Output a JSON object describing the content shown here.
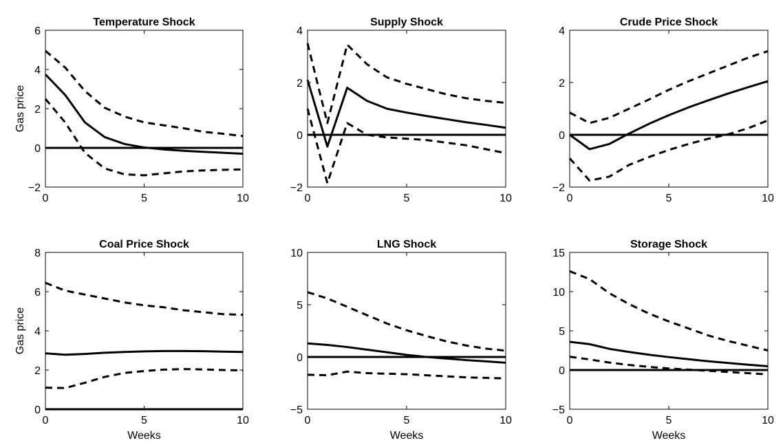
{
  "chart_data": [
    {
      "type": "line",
      "title": "Temperature Shock",
      "xlabel": "",
      "ylabel": "Gas price",
      "xlim": [
        0,
        10
      ],
      "ylim": [
        -2,
        6
      ],
      "xticks": [
        0,
        5,
        10
      ],
      "yticks": [
        -2,
        0,
        2,
        4,
        6
      ],
      "x": [
        0,
        1,
        2,
        3,
        4,
        5,
        6,
        7,
        8,
        9,
        10
      ],
      "series": [
        {
          "style": "solid",
          "values": [
            3.75,
            2.7,
            1.3,
            0.55,
            0.2,
            0.02,
            -0.08,
            -0.15,
            -0.2,
            -0.25,
            -0.3
          ]
        },
        {
          "style": "dashed",
          "values": [
            4.95,
            4.1,
            2.9,
            2.05,
            1.6,
            1.3,
            1.15,
            1.0,
            0.82,
            0.72,
            0.6
          ]
        },
        {
          "style": "dashed",
          "values": [
            2.5,
            1.3,
            -0.25,
            -1.05,
            -1.35,
            -1.4,
            -1.3,
            -1.2,
            -1.15,
            -1.12,
            -1.1
          ]
        },
        {
          "style": "zero",
          "values": [
            0,
            0,
            0,
            0,
            0,
            0,
            0,
            0,
            0,
            0,
            0
          ]
        }
      ]
    },
    {
      "type": "line",
      "title": "Supply Shock",
      "xlabel": "",
      "ylabel": "",
      "xlim": [
        0,
        10
      ],
      "ylim": [
        -2,
        4
      ],
      "xticks": [
        0,
        5,
        10
      ],
      "yticks": [
        -2,
        0,
        2,
        4
      ],
      "x": [
        0,
        1,
        2,
        3,
        4,
        5,
        6,
        7,
        8,
        9,
        10
      ],
      "series": [
        {
          "style": "solid",
          "values": [
            2.1,
            -0.45,
            1.8,
            1.3,
            1.0,
            0.85,
            0.72,
            0.6,
            0.48,
            0.38,
            0.27
          ]
        },
        {
          "style": "dashed",
          "values": [
            3.5,
            0.45,
            3.45,
            2.7,
            2.2,
            1.95,
            1.75,
            1.55,
            1.4,
            1.3,
            1.22
          ]
        },
        {
          "style": "dashed",
          "values": [
            1.0,
            -1.85,
            0.45,
            0.0,
            -0.1,
            -0.15,
            -0.2,
            -0.3,
            -0.4,
            -0.55,
            -0.7
          ]
        },
        {
          "style": "zero",
          "values": [
            0,
            0,
            0,
            0,
            0,
            0,
            0,
            0,
            0,
            0,
            0
          ]
        }
      ]
    },
    {
      "type": "line",
      "title": "Crude Price Shock",
      "xlabel": "",
      "ylabel": "",
      "xlim": [
        0,
        10
      ],
      "ylim": [
        -2,
        4
      ],
      "xticks": [
        0,
        5,
        10
      ],
      "yticks": [
        -2,
        0,
        2,
        4
      ],
      "x": [
        0,
        1,
        2,
        3,
        4,
        5,
        6,
        7,
        8,
        9,
        10
      ],
      "series": [
        {
          "style": "solid",
          "values": [
            0.0,
            -0.55,
            -0.35,
            0.05,
            0.42,
            0.75,
            1.05,
            1.32,
            1.58,
            1.82,
            2.05
          ]
        },
        {
          "style": "dashed",
          "values": [
            0.85,
            0.45,
            0.65,
            1.0,
            1.35,
            1.72,
            2.05,
            2.35,
            2.65,
            2.95,
            3.2
          ]
        },
        {
          "style": "dashed",
          "values": [
            -0.9,
            -1.75,
            -1.6,
            -1.15,
            -0.85,
            -0.58,
            -0.35,
            -0.15,
            0.02,
            0.25,
            0.55
          ]
        },
        {
          "style": "zero",
          "values": [
            0,
            0,
            0,
            0,
            0,
            0,
            0,
            0,
            0,
            0,
            0
          ]
        }
      ]
    },
    {
      "type": "line",
      "title": "Coal Price Shock",
      "xlabel": "Weeks",
      "ylabel": "Gas price",
      "xlim": [
        0,
        10
      ],
      "ylim": [
        0,
        8
      ],
      "xticks": [
        0,
        5,
        10
      ],
      "yticks": [
        0,
        2,
        4,
        6,
        8
      ],
      "x": [
        0,
        1,
        2,
        3,
        4,
        5,
        6,
        7,
        8,
        9,
        10
      ],
      "series": [
        {
          "style": "solid",
          "values": [
            2.85,
            2.78,
            2.82,
            2.88,
            2.92,
            2.95,
            2.97,
            2.97,
            2.96,
            2.94,
            2.92
          ]
        },
        {
          "style": "dashed",
          "values": [
            6.45,
            6.05,
            5.85,
            5.65,
            5.45,
            5.3,
            5.2,
            5.05,
            4.95,
            4.85,
            4.82
          ]
        },
        {
          "style": "dashed",
          "values": [
            1.1,
            1.08,
            1.35,
            1.65,
            1.85,
            1.95,
            2.02,
            2.05,
            2.03,
            2.0,
            1.98
          ]
        },
        {
          "style": "zero",
          "values": [
            0,
            0,
            0,
            0,
            0,
            0,
            0,
            0,
            0,
            0,
            0
          ]
        }
      ]
    },
    {
      "type": "line",
      "title": "LNG Shock",
      "xlabel": "Weeks",
      "ylabel": "",
      "xlim": [
        0,
        10
      ],
      "ylim": [
        -5,
        10
      ],
      "xticks": [
        0,
        5,
        10
      ],
      "yticks": [
        -5,
        0,
        5,
        10
      ],
      "x": [
        0,
        1,
        2,
        3,
        4,
        5,
        6,
        7,
        8,
        9,
        10
      ],
      "series": [
        {
          "style": "solid",
          "values": [
            1.3,
            1.15,
            0.95,
            0.7,
            0.45,
            0.2,
            0.0,
            -0.15,
            -0.3,
            -0.42,
            -0.55
          ]
        },
        {
          "style": "dashed",
          "values": [
            6.2,
            5.6,
            4.8,
            4.0,
            3.2,
            2.55,
            2.0,
            1.5,
            1.1,
            0.8,
            0.6
          ]
        },
        {
          "style": "dashed",
          "values": [
            -1.7,
            -1.75,
            -1.4,
            -1.55,
            -1.6,
            -1.65,
            -1.75,
            -1.85,
            -1.95,
            -2.0,
            -2.05
          ]
        },
        {
          "style": "zero",
          "values": [
            0,
            0,
            0,
            0,
            0,
            0,
            0,
            0,
            0,
            0,
            0
          ]
        }
      ]
    },
    {
      "type": "line",
      "title": "Storage Shock",
      "xlabel": "Weeks",
      "ylabel": "",
      "xlim": [
        0,
        10
      ],
      "ylim": [
        -5,
        15
      ],
      "xticks": [
        0,
        5,
        10
      ],
      "yticks": [
        -5,
        0,
        5,
        10,
        15
      ],
      "x": [
        0,
        1,
        2,
        3,
        4,
        5,
        6,
        7,
        8,
        9,
        10
      ],
      "series": [
        {
          "style": "solid",
          "values": [
            3.6,
            3.3,
            2.7,
            2.3,
            1.95,
            1.65,
            1.38,
            1.12,
            0.9,
            0.68,
            0.48
          ]
        },
        {
          "style": "dashed",
          "values": [
            12.6,
            11.6,
            9.8,
            8.4,
            7.2,
            6.2,
            5.3,
            4.4,
            3.7,
            3.1,
            2.5
          ]
        },
        {
          "style": "dashed",
          "values": [
            1.7,
            1.35,
            0.95,
            0.65,
            0.4,
            0.2,
            0.05,
            -0.1,
            -0.25,
            -0.4,
            -0.55
          ]
        },
        {
          "style": "zero",
          "values": [
            0,
            0,
            0,
            0,
            0,
            0,
            0,
            0,
            0,
            0,
            0
          ]
        }
      ]
    }
  ]
}
